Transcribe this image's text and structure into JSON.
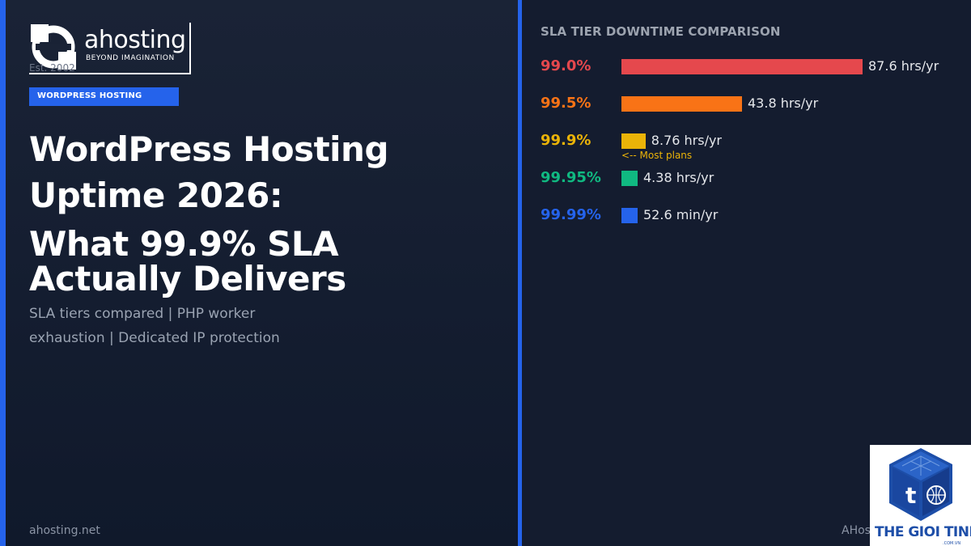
{
  "brand": {
    "name": "ahosting",
    "tagline": "BEYOND IMAGINATION",
    "established": "Est. 2002"
  },
  "category": "WORDPRESS HOSTING",
  "headline": {
    "line1": "WordPress Hosting",
    "line2": "Uptime 2026:",
    "line3": "What 99.9% SLA",
    "line4": "Actually Delivers"
  },
  "subtitle": "SLA tiers compared  |  PHP worker exhaustion  |  Dedicated IP protection",
  "footer": {
    "domain": "ahosting.net",
    "right_text": "AHos"
  },
  "colors": {
    "accent": "#2563eb",
    "red": "#e5484d",
    "orange": "#f97316",
    "yellow": "#eab308",
    "green": "#10b981",
    "blue": "#2563eb"
  },
  "chart_data": {
    "type": "bar",
    "orientation": "horizontal",
    "title": "SLA TIER DOWNTIME COMPARISON",
    "categories": [
      "99.0%",
      "99.5%",
      "99.9%",
      "99.95%",
      "99.99%"
    ],
    "values_hours_per_year": [
      87.6,
      43.8,
      8.76,
      4.38,
      0.877
    ],
    "value_labels": [
      "87.6 hrs/yr",
      "43.8 hrs/yr",
      "8.76 hrs/yr",
      "4.38 hrs/yr",
      "52.6 min/yr"
    ],
    "colors": [
      "#e5484d",
      "#f97316",
      "#eab308",
      "#10b981",
      "#2563eb"
    ],
    "annotations": [
      {
        "category": "99.9%",
        "text": "<-- Most plans"
      }
    ],
    "grid": false
  },
  "watermark": {
    "text": "THE GIOI TINHOC",
    "sub": ".COM.VN",
    "icon": "cube-logo-icon"
  }
}
